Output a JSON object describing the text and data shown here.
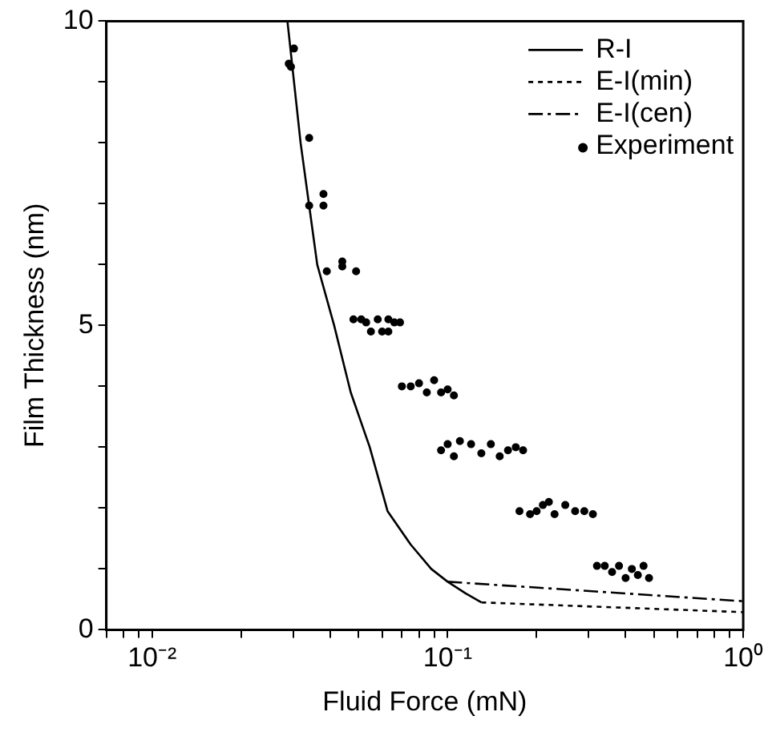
{
  "chart_data": {
    "type": "line",
    "xlabel": "Fluid Force (mN)",
    "ylabel": "Film Thickness (nm)",
    "log": "x",
    "xlim": [
      0.007,
      1
    ],
    "ylim": [
      0,
      10
    ],
    "xticks": [
      {
        "value": 0.007,
        "label": null
      },
      {
        "value": 0.008,
        "label": null
      },
      {
        "value": 0.009,
        "label": null
      },
      {
        "value": 0.01,
        "label": "10⁻²"
      },
      {
        "value": 0.02,
        "label": null
      },
      {
        "value": 0.03,
        "label": null
      },
      {
        "value": 0.04,
        "label": null
      },
      {
        "value": 0.05,
        "label": null
      },
      {
        "value": 0.06,
        "label": null
      },
      {
        "value": 0.07,
        "label": null
      },
      {
        "value": 0.08,
        "label": null
      },
      {
        "value": 0.09,
        "label": null
      },
      {
        "value": 0.1,
        "label": "10⁻¹"
      },
      {
        "value": 0.2,
        "label": null
      },
      {
        "value": 0.3,
        "label": null
      },
      {
        "value": 0.4,
        "label": null
      },
      {
        "value": 0.5,
        "label": null
      },
      {
        "value": 0.6,
        "label": null
      },
      {
        "value": 0.7,
        "label": null
      },
      {
        "value": 0.8,
        "label": null
      },
      {
        "value": 0.9,
        "label": null
      },
      {
        "value": 1,
        "label": "10⁰"
      }
    ],
    "yticks": [
      0,
      {
        "value": 1,
        "label": null
      },
      {
        "value": 2,
        "label": null
      },
      {
        "value": 3,
        "label": null
      },
      {
        "value": 4,
        "label": null
      },
      5,
      {
        "value": 6,
        "label": null
      },
      {
        "value": 7,
        "label": null
      },
      {
        "value": 8,
        "label": null
      },
      {
        "value": 9,
        "label": null
      },
      10
    ],
    "grid": false,
    "legend": "top right",
    "series": [
      {
        "name": "R-I",
        "type": "line",
        "line_style": "solid",
        "color": "#000000",
        "x": [
          0.0287,
          0.0318,
          0.0362,
          0.0413,
          0.047,
          0.0545,
          0.0626,
          0.075,
          0.088,
          0.1,
          0.115,
          0.13
        ],
        "values": [
          10,
          8,
          6,
          5,
          3.9,
          3,
          1.95,
          1.4,
          1.0,
          0.79,
          0.6,
          0.45
        ]
      },
      {
        "name": "E-I(min)",
        "type": "line",
        "line_style": "dotted",
        "color": "#000000",
        "x": [
          0.13,
          1
        ],
        "values": [
          0.45,
          0.29
        ]
      },
      {
        "name": "E-I(cen)",
        "type": "line",
        "line_style": "dashed",
        "color": "#000000",
        "x": [
          0.1,
          1
        ],
        "values": [
          0.79,
          0.47
        ]
      },
      {
        "name": "Experiment",
        "type": "scatter",
        "marker": "circle",
        "color": "#000000",
        "x": [
          0.029,
          0.0295,
          0.0302,
          0.034,
          0.034,
          0.038,
          0.038,
          0.039,
          0.044,
          0.044,
          0.049,
          0.048,
          0.051,
          0.053,
          0.055,
          0.058,
          0.06,
          0.063,
          0.066,
          0.069,
          0.063,
          0.07,
          0.075,
          0.08,
          0.085,
          0.09,
          0.095,
          0.1,
          0.105,
          0.095,
          0.1,
          0.105,
          0.11,
          0.12,
          0.13,
          0.14,
          0.15,
          0.16,
          0.17,
          0.18,
          0.175,
          0.19,
          0.2,
          0.21,
          0.22,
          0.23,
          0.25,
          0.27,
          0.29,
          0.31,
          0.32,
          0.34,
          0.36,
          0.38,
          0.4,
          0.42,
          0.44,
          0.46,
          0.48
        ],
        "values": [
          9.3,
          9.25,
          9.55,
          8.08,
          6.97,
          6.97,
          7.16,
          5.89,
          6.05,
          5.97,
          5.89,
          5.1,
          5.1,
          5.05,
          4.9,
          5.1,
          4.9,
          5.1,
          5.05,
          5.05,
          4.9,
          4.0,
          4.0,
          4.05,
          3.9,
          4.1,
          3.9,
          3.95,
          3.85,
          2.95,
          3.05,
          2.85,
          3.1,
          3.05,
          2.9,
          3.05,
          2.85,
          2.95,
          3.0,
          2.95,
          1.95,
          1.9,
          1.95,
          2.05,
          2.1,
          1.9,
          2.05,
          1.95,
          1.95,
          1.9,
          1.05,
          1.05,
          0.95,
          1.05,
          0.85,
          1.0,
          0.9,
          1.05,
          0.85
        ]
      }
    ]
  }
}
